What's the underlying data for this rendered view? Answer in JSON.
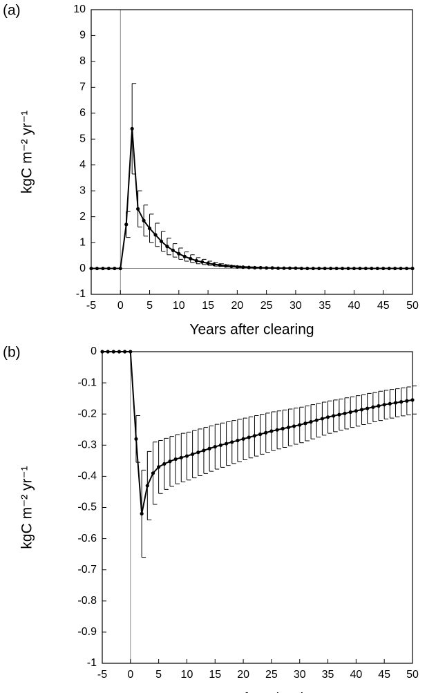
{
  "chart_data": [
    {
      "type": "line",
      "label": "(a)",
      "xlabel": "Years after clearing",
      "ylabel": "kgC m⁻² yr⁻¹",
      "x": [
        -5,
        -4,
        -3,
        -2,
        -1,
        0,
        1,
        2,
        3,
        4,
        5,
        6,
        7,
        8,
        9,
        10,
        11,
        12,
        13,
        14,
        15,
        16,
        17,
        18,
        19,
        20,
        21,
        22,
        23,
        24,
        25,
        26,
        27,
        28,
        29,
        30,
        31,
        32,
        33,
        34,
        35,
        36,
        37,
        38,
        39,
        40,
        41,
        42,
        43,
        44,
        45,
        46,
        47,
        48,
        49,
        50
      ],
      "series": [
        {
          "color": "#000000",
          "values": [
            0,
            0,
            0,
            0,
            0,
            0,
            1.7,
            5.4,
            2.3,
            1.85,
            1.55,
            1.3,
            1.05,
            0.85,
            0.7,
            0.57,
            0.46,
            0.38,
            0.3,
            0.25,
            0.2,
            0.16,
            0.13,
            0.1,
            0.08,
            0.06,
            0.05,
            0.04,
            0.03,
            0.03,
            0.02,
            0.02,
            0.01,
            0.01,
            0.01,
            0.01,
            0,
            0,
            0,
            0,
            0,
            0,
            0,
            0,
            0,
            0,
            0,
            0,
            0,
            0,
            0,
            0,
            0,
            0,
            0,
            0
          ],
          "errors": [
            0,
            0,
            0,
            0,
            0,
            0,
            0.5,
            1.75,
            0.7,
            0.6,
            0.55,
            0.45,
            0.38,
            0.32,
            0.26,
            0.22,
            0.18,
            0.15,
            0.12,
            0.1,
            0.08,
            0.07,
            0.05,
            0.04,
            0.03,
            0.03,
            0.02,
            0.02,
            0.02,
            0.01,
            0.01,
            0.01,
            0.01,
            0.01,
            0.01,
            0.01,
            0,
            0,
            0,
            0,
            0,
            0,
            0,
            0,
            0,
            0,
            0,
            0,
            0,
            0,
            0,
            0,
            0,
            0,
            0,
            0
          ]
        }
      ],
      "xlim": [
        -5,
        50
      ],
      "xticks": [
        -5,
        0,
        5,
        10,
        15,
        20,
        25,
        30,
        35,
        40,
        45,
        50
      ],
      "ylim": [
        -1,
        10
      ],
      "yticks": [
        -1,
        0,
        1,
        2,
        3,
        4,
        5,
        6,
        7,
        8,
        9,
        10
      ],
      "zero_lines": true
    },
    {
      "type": "line",
      "label": "(b)",
      "xlabel": "Years after clearing",
      "ylabel": "kgC m⁻² yr⁻¹",
      "x": [
        -5,
        -4,
        -3,
        -2,
        -1,
        0,
        1,
        2,
        3,
        4,
        5,
        6,
        7,
        8,
        9,
        10,
        11,
        12,
        13,
        14,
        15,
        16,
        17,
        18,
        19,
        20,
        21,
        22,
        23,
        24,
        25,
        26,
        27,
        28,
        29,
        30,
        31,
        32,
        33,
        34,
        35,
        36,
        37,
        38,
        39,
        40,
        41,
        42,
        43,
        44,
        45,
        46,
        47,
        48,
        49,
        50
      ],
      "series": [
        {
          "color": "#000000",
          "values": [
            0,
            0,
            0,
            0,
            0,
            0,
            -0.28,
            -0.52,
            -0.43,
            -0.39,
            -0.37,
            -0.36,
            -0.352,
            -0.345,
            -0.34,
            -0.335,
            -0.329,
            -0.323,
            -0.317,
            -0.311,
            -0.305,
            -0.3,
            -0.295,
            -0.29,
            -0.285,
            -0.28,
            -0.275,
            -0.27,
            -0.265,
            -0.26,
            -0.255,
            -0.251,
            -0.247,
            -0.243,
            -0.239,
            -0.235,
            -0.23,
            -0.225,
            -0.22,
            -0.215,
            -0.21,
            -0.206,
            -0.202,
            -0.198,
            -0.194,
            -0.19,
            -0.186,
            -0.182,
            -0.178,
            -0.174,
            -0.17,
            -0.167,
            -0.164,
            -0.161,
            -0.158,
            -0.155
          ],
          "errors": [
            0,
            0,
            0,
            0,
            0,
            0,
            0.075,
            0.14,
            0.11,
            0.1,
            0.085,
            0.082,
            0.08,
            0.079,
            0.078,
            0.077,
            0.076,
            0.075,
            0.074,
            0.073,
            0.072,
            0.071,
            0.07,
            0.069,
            0.068,
            0.067,
            0.066,
            0.065,
            0.064,
            0.063,
            0.062,
            0.061,
            0.06,
            0.059,
            0.058,
            0.057,
            0.056,
            0.055,
            0.054,
            0.053,
            0.052,
            0.051,
            0.05,
            0.05,
            0.049,
            0.049,
            0.048,
            0.048,
            0.047,
            0.047,
            0.046,
            0.046,
            0.045,
            0.045,
            0.045,
            0.045
          ]
        }
      ],
      "xlim": [
        -5,
        50
      ],
      "xticks": [
        -5,
        0,
        5,
        10,
        15,
        20,
        25,
        30,
        35,
        40,
        45,
        50
      ],
      "ylim": [
        -1,
        0
      ],
      "yticks": [
        -1,
        -0.9,
        -0.8,
        -0.7,
        -0.6,
        -0.5,
        -0.4,
        -0.3,
        -0.2,
        -0.1,
        0
      ],
      "zero_lines": true
    }
  ]
}
